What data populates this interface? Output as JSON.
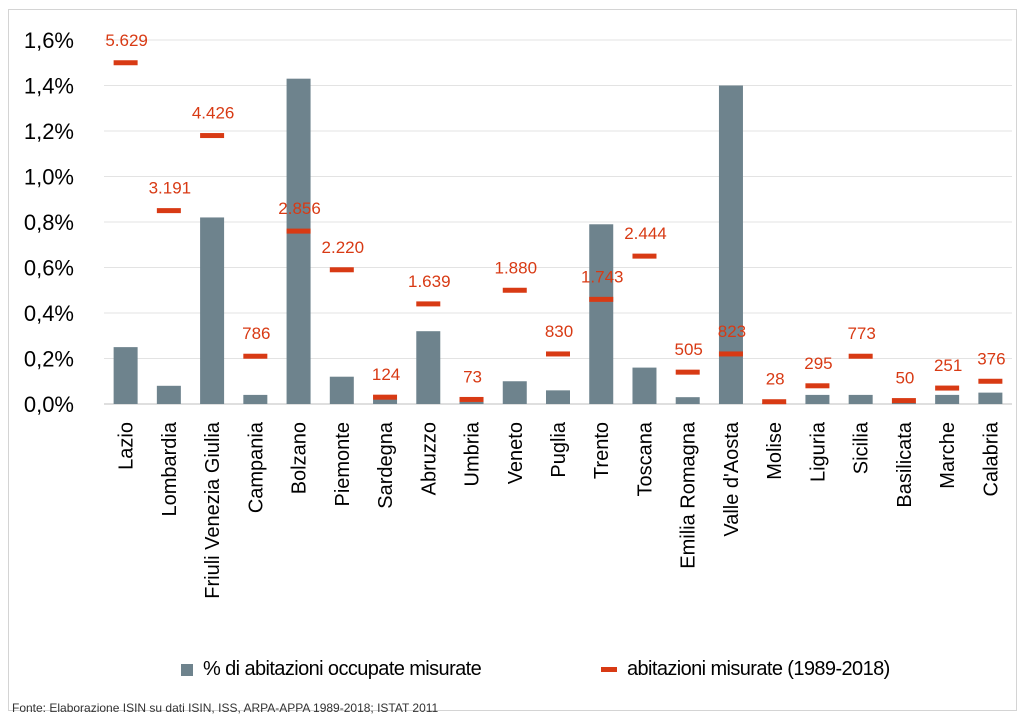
{
  "chart_data": {
    "type": "bar",
    "categories": [
      "Lazio",
      "Lombardia",
      "Friuli Venezia Giulia",
      "Campania",
      "Bolzano",
      "Piemonte",
      "Sardegna",
      "Abruzzo",
      "Umbria",
      "Veneto",
      "Puglia",
      "Trento",
      "Toscana",
      "Emilia Romagna",
      "Valle d'Aosta",
      "Molise",
      "Liguria",
      "Sicilia",
      "Basilicata",
      "Marche",
      "Calabria"
    ],
    "series": [
      {
        "name": "% di abitazioni occupate misurate",
        "kind": "bar",
        "color": "#6e838d",
        "values": [
          0.25,
          0.08,
          0.82,
          0.04,
          1.43,
          0.12,
          0.02,
          0.32,
          0.01,
          0.1,
          0.06,
          0.79,
          0.16,
          0.03,
          1.4,
          0.005,
          0.04,
          0.04,
          0.005,
          0.04,
          0.05
        ]
      },
      {
        "name": "abitazioni misurate (1989-2018)",
        "kind": "marker",
        "color": "#d83a14",
        "values": [
          1.5,
          0.85,
          1.18,
          0.21,
          0.76,
          0.59,
          0.03,
          0.44,
          0.02,
          0.5,
          0.22,
          0.46,
          0.65,
          0.14,
          0.22,
          0.01,
          0.08,
          0.21,
          0.015,
          0.07,
          0.1
        ],
        "labels": [
          "5.629",
          "3.191",
          "4.426",
          "786",
          "2.856",
          "2.220",
          "124",
          "1.639",
          "73",
          "1.880",
          "830",
          "1.743",
          "2.444",
          "505",
          "823",
          "28",
          "295",
          "773",
          "50",
          "251",
          "376"
        ]
      }
    ],
    "yticks": [
      "0,0%",
      "0,2%",
      "0,4%",
      "0,6%",
      "0,8%",
      "1,0%",
      "1,2%",
      "1,4%",
      "1,6%"
    ],
    "ylim": [
      0,
      1.6
    ],
    "grid": true,
    "legend": "bottom"
  },
  "legend": {
    "bar_label": "% di abitazioni occupate misurate",
    "marker_label": "abitazioni misurate (1989-2018)"
  },
  "source": "Fonte: Elaborazione ISIN su dati ISIN, ISS, ARPA-APPA 1989-2018; ISTAT 2011"
}
